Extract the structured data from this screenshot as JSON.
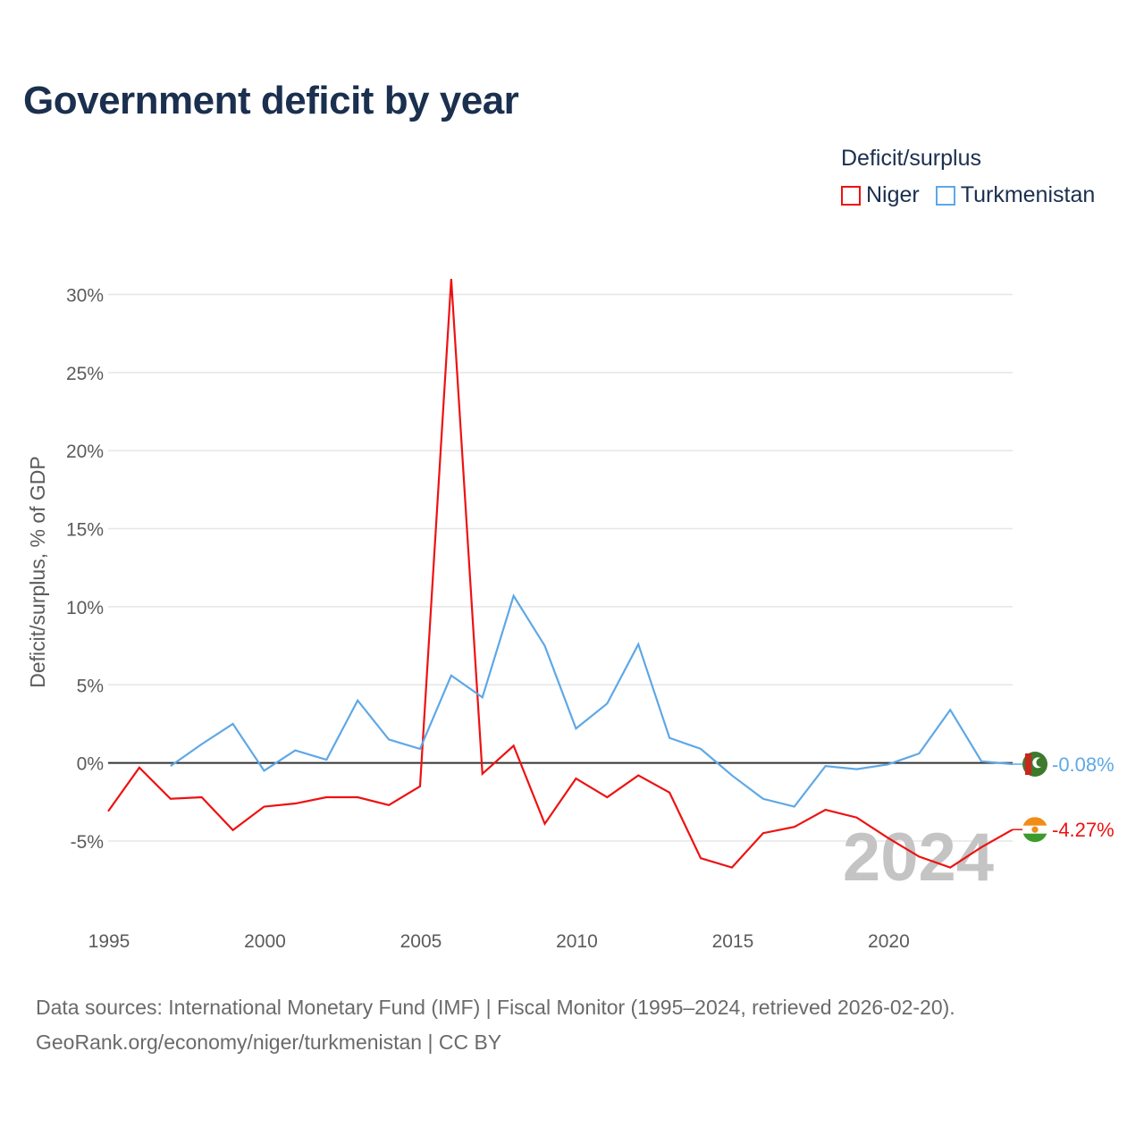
{
  "title": "Government deficit by year",
  "legend": {
    "title": "Deficit/surplus",
    "items": [
      {
        "label": "Niger",
        "color": "#ee1111"
      },
      {
        "label": "Turkmenistan",
        "color": "#5ea8e6"
      }
    ]
  },
  "chart_data": {
    "type": "line",
    "title": "Government deficit by year",
    "xlabel": "",
    "ylabel": "Deficit/surplus, % of GDP",
    "xlim": [
      1995,
      2024
    ],
    "ylim": [
      -10,
      31
    ],
    "xticks": [
      1995,
      2000,
      2005,
      2010,
      2015,
      2020
    ],
    "yticks": [
      30,
      25,
      20,
      15,
      10,
      5,
      0,
      -5
    ],
    "ytick_labels": [
      "30%",
      "25%",
      "20%",
      "15%",
      "10%",
      "5%",
      "0%",
      "-5%"
    ],
    "zero_line": true,
    "series": [
      {
        "name": "Niger",
        "color": "#ee1111",
        "x": [
          1995,
          1996,
          1997,
          1998,
          1999,
          2000,
          2001,
          2002,
          2003,
          2004,
          2005,
          2006,
          2007,
          2008,
          2009,
          2010,
          2011,
          2012,
          2013,
          2014,
          2015,
          2016,
          2017,
          2018,
          2019,
          2020,
          2021,
          2022,
          2023,
          2024
        ],
        "values": [
          -3.1,
          -0.3,
          -2.3,
          -2.2,
          -4.3,
          -2.8,
          -2.6,
          -2.2,
          -2.2,
          -2.7,
          -1.5,
          31.0,
          -0.7,
          1.1,
          -3.9,
          -1.0,
          -2.2,
          -0.8,
          -1.9,
          -6.1,
          -6.7,
          -4.5,
          -4.1,
          -3.0,
          -3.5,
          -4.8,
          -6.0,
          -6.7,
          -5.4,
          -4.27
        ]
      },
      {
        "name": "Turkmenistan",
        "color": "#5ea8e6",
        "x": [
          1997,
          1998,
          1999,
          2000,
          2001,
          2002,
          2003,
          2004,
          2005,
          2006,
          2007,
          2008,
          2009,
          2010,
          2011,
          2012,
          2013,
          2014,
          2015,
          2016,
          2017,
          2018,
          2019,
          2020,
          2021,
          2022,
          2023,
          2024
        ],
        "values": [
          -0.2,
          1.2,
          2.5,
          -0.5,
          0.8,
          0.2,
          4.0,
          1.5,
          0.9,
          5.6,
          4.2,
          10.7,
          7.5,
          2.2,
          3.8,
          7.6,
          1.6,
          0.9,
          -0.8,
          -2.3,
          -2.8,
          -0.2,
          -0.4,
          -0.1,
          0.6,
          3.4,
          0.1,
          -0.08
        ]
      }
    ],
    "end_labels": [
      {
        "series": "Turkmenistan",
        "text": "-0.08%"
      },
      {
        "series": "Niger",
        "text": "-4.27%"
      }
    ],
    "watermark": "2024"
  },
  "flags": {
    "turkmenistan": {
      "field": "#3d7a2c",
      "stripe": "#c8261e",
      "emblem": "#ffffff"
    },
    "niger": {
      "top": "#f28c18",
      "middle": "#ffffff",
      "bottom": "#3d9a2c",
      "disc": "#f28c18"
    }
  },
  "source": {
    "line1": "Data sources: International Monetary Fund (IMF) | Fiscal Monitor (1995–2024, retrieved 2026-02-20).",
    "line2": "GeoRank.org/economy/niger/turkmenistan | CC BY"
  }
}
